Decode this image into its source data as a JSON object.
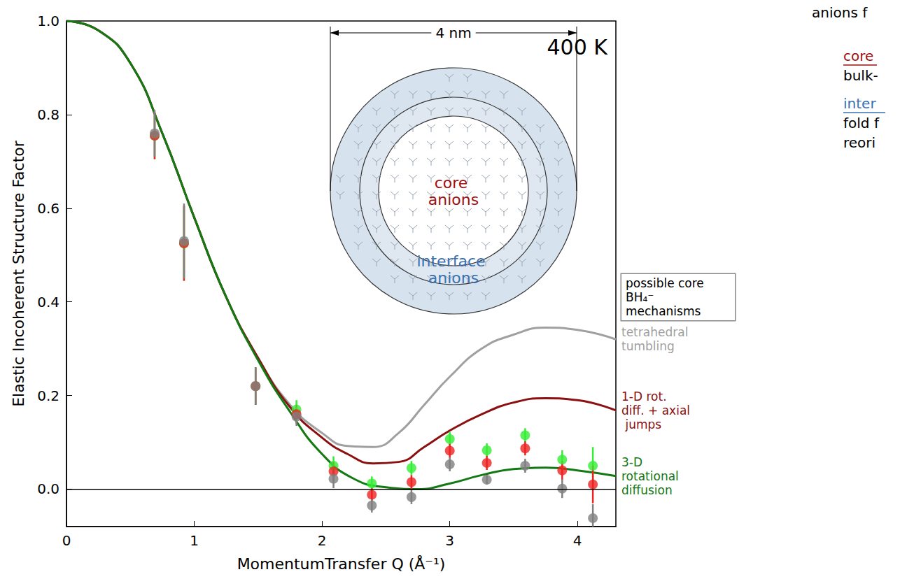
{
  "chart_data": {
    "type": "scatter",
    "x_label": "MomentumTransfer Q (Å⁻¹)",
    "y_label": "Elastic Incoherent Structure Factor",
    "xlim": [
      0,
      4.3
    ],
    "xticks": [
      0,
      1,
      2,
      3,
      4
    ],
    "ylim": [
      -0.08,
      1.0
    ],
    "yticks": [
      {
        "value": 0,
        "label": "0.0"
      },
      {
        "value": 0.2,
        "label": "0.2"
      },
      {
        "value": 0.4,
        "label": "0.4"
      },
      {
        "value": 0.6,
        "label": "0.6"
      },
      {
        "value": 0.8,
        "label": "0.8"
      },
      {
        "value": 1,
        "label": "1.0"
      }
    ],
    "grid": false,
    "series": [
      {
        "name": "tetrahedral tumbling",
        "type": "line",
        "color": "#a0a0a0",
        "x": [
          0,
          0.25,
          0.5,
          0.75,
          1.0,
          1.25,
          1.5,
          1.75,
          2.0,
          2.2,
          2.4,
          2.6,
          2.8,
          3.0,
          3.25,
          3.5,
          3.75,
          4.0,
          4.3
        ],
        "values": [
          1.0,
          0.98,
          0.91,
          0.76,
          0.58,
          0.41,
          0.28,
          0.18,
          0.12,
          0.092,
          0.09,
          0.12,
          0.18,
          0.24,
          0.3,
          0.33,
          0.345,
          0.34,
          0.32
        ]
      },
      {
        "name": "1-D rot. diff. + axial jumps",
        "type": "line",
        "color": "#8b1010",
        "x": [
          0,
          0.25,
          0.5,
          0.75,
          1.0,
          1.25,
          1.5,
          1.75,
          2.0,
          2.2,
          2.4,
          2.6,
          2.8,
          3.0,
          3.25,
          3.5,
          3.75,
          4.0,
          4.3
        ],
        "values": [
          1.0,
          0.98,
          0.91,
          0.76,
          0.58,
          0.41,
          0.28,
          0.175,
          0.11,
          0.075,
          0.055,
          0.058,
          0.09,
          0.125,
          0.16,
          0.185,
          0.194,
          0.19,
          0.168
        ]
      },
      {
        "name": "3-D rotational diffusion",
        "type": "line",
        "color": "#137a13",
        "x": [
          0,
          0.25,
          0.5,
          0.75,
          1.0,
          1.25,
          1.5,
          1.75,
          2.0,
          2.25,
          2.5,
          2.75,
          3.0,
          3.25,
          3.5,
          3.75,
          4.0,
          4.3
        ],
        "values": [
          1.0,
          0.98,
          0.91,
          0.76,
          0.58,
          0.41,
          0.275,
          0.165,
          0.075,
          0.022,
          0.004,
          0.0,
          0.012,
          0.03,
          0.043,
          0.046,
          0.04,
          0.028
        ]
      },
      {
        "type": "scatter",
        "marker": "circle",
        "color": "#33ee33",
        "x": [
          0.69,
          0.92,
          1.48,
          1.8,
          2.09,
          2.39,
          2.7,
          3.0,
          3.29,
          3.59,
          3.88,
          4.12
        ],
        "values": [
          0.755,
          0.525,
          0.22,
          0.17,
          0.05,
          0.012,
          0.045,
          0.107,
          0.083,
          0.115,
          0.063,
          0.05
        ],
        "errors": [
          0.05,
          0.08,
          0.04,
          0.02,
          0.02,
          0.015,
          0.015,
          0.015,
          0.015,
          0.015,
          0.02,
          0.04
        ]
      },
      {
        "type": "scatter",
        "marker": "circle",
        "color": "#ee2222",
        "x": [
          0.69,
          0.92,
          1.48,
          1.8,
          2.09,
          2.39,
          2.7,
          3.0,
          3.29,
          3.59,
          3.88,
          4.12
        ],
        "values": [
          0.755,
          0.525,
          0.22,
          0.16,
          0.038,
          -0.012,
          0.015,
          0.082,
          0.056,
          0.087,
          0.04,
          0.01
        ],
        "errors": [
          0.05,
          0.08,
          0.04,
          0.02,
          0.02,
          0.015,
          0.015,
          0.015,
          0.015,
          0.015,
          0.02,
          0.04
        ]
      },
      {
        "type": "scatter",
        "marker": "circle",
        "color": "#808080",
        "x": [
          0.69,
          0.92,
          1.48,
          1.8,
          2.09,
          2.39,
          2.7,
          3.0,
          3.29,
          3.59,
          3.88,
          4.12
        ],
        "values": [
          0.76,
          0.53,
          0.22,
          0.155,
          0.022,
          -0.035,
          -0.017,
          0.053,
          0.02,
          0.05,
          0.001,
          -0.062
        ],
        "errors": [
          0.05,
          0.08,
          0.04,
          0.02,
          0.02,
          0.015,
          0.015,
          0.015,
          0.01,
          0.015,
          0.02,
          0.03
        ]
      }
    ],
    "annotations": {
      "temperature": "400 K",
      "inset": {
        "scale": "4 nm",
        "core": "core anions",
        "interface": "interface anions"
      },
      "mechanisms_box": "possible core BH₄⁻ mechanisms",
      "side_text": [
        {
          "text": "anions f"
        },
        {
          "text": "core",
          "color": "#a01010"
        },
        {
          "text": "bulk-"
        },
        {
          "text": "inter",
          "color": "#3a70b0"
        },
        {
          "text": "fold f"
        },
        {
          "text": "reori"
        }
      ]
    }
  }
}
